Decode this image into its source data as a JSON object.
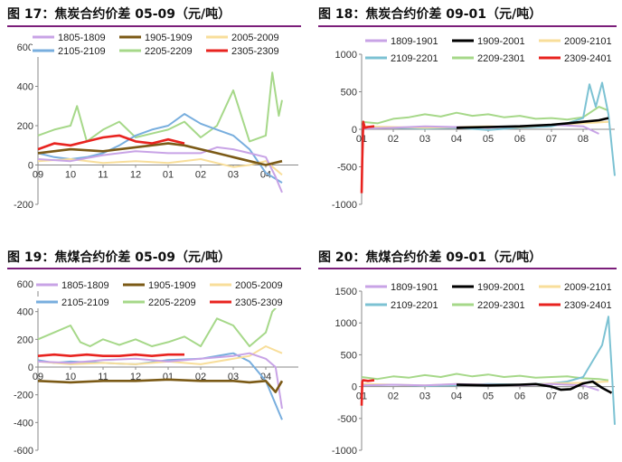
{
  "panels": [
    {
      "title": "图 17：焦炭合约价差 05-09（元/吨）"
    },
    {
      "title": "图 18：焦炭合约价差 09-01（元/吨）"
    },
    {
      "title": "图 19：焦煤合约价差 05-09（元/吨）"
    },
    {
      "title": "图 20：焦煤合约价差 09-01（元/吨）"
    }
  ],
  "colors": {
    "title_rule": "#7b1e7a",
    "series": [
      "#c8a3e6",
      "#7b5a16",
      "#f8de9a",
      "#78aede",
      "#a6d889",
      "#e8231f"
    ],
    "series_0901": [
      "#c8a3e6",
      "#000000",
      "#f8de9a",
      "#7cc2d3",
      "#a6d889",
      "#e8231f"
    ]
  },
  "chart_data": [
    {
      "type": "line",
      "title": "图 17：焦炭合约价差 05-09（元/吨）",
      "xlabel": "",
      "ylabel": "",
      "ylim": [
        -200,
        600
      ],
      "yticks": [
        -200,
        0,
        200,
        400,
        600
      ],
      "x_tick_labels": [
        "09",
        "10",
        "11",
        "12",
        "01",
        "02",
        "03",
        "04"
      ],
      "grid": false,
      "legend_position": "top",
      "series": [
        {
          "name": "1805-1809",
          "color": "#c8a3e6",
          "x": [
            0,
            1,
            2,
            3,
            4,
            5,
            5.5,
            6,
            6.5,
            7,
            7.3,
            7.5
          ],
          "values": [
            30,
            20,
            50,
            70,
            60,
            60,
            90,
            80,
            60,
            40,
            -60,
            -140
          ]
        },
        {
          "name": "1905-1909",
          "color": "#7b5a16",
          "x": [
            0,
            1,
            2,
            3,
            4,
            4.5,
            5,
            5.5,
            6,
            6.5,
            7,
            7.5
          ],
          "values": [
            60,
            80,
            70,
            90,
            110,
            100,
            80,
            60,
            40,
            20,
            0,
            20
          ]
        },
        {
          "name": "2005-2009",
          "color": "#f8de9a",
          "x": [
            0,
            1,
            2,
            3,
            4,
            5,
            6,
            6.5,
            7,
            7.5
          ],
          "values": [
            20,
            30,
            10,
            20,
            10,
            30,
            -10,
            0,
            20,
            -50
          ]
        },
        {
          "name": "2105-2109",
          "color": "#78aede",
          "x": [
            0,
            0.5,
            1,
            1.5,
            2,
            2.5,
            3,
            3.5,
            4,
            4.5,
            5,
            5.5,
            6,
            6.5,
            7,
            7.5
          ],
          "values": [
            60,
            40,
            30,
            40,
            60,
            100,
            150,
            180,
            200,
            260,
            210,
            180,
            150,
            80,
            -40,
            -90
          ]
        },
        {
          "name": "2205-2209",
          "color": "#a6d889",
          "x": [
            0,
            0.5,
            1,
            1.2,
            1.5,
            2,
            2.5,
            3,
            3.5,
            4,
            4.5,
            5,
            5.5,
            6,
            6.5,
            7,
            7.2,
            7.4,
            7.5
          ],
          "values": [
            150,
            180,
            200,
            300,
            120,
            180,
            220,
            140,
            160,
            180,
            220,
            140,
            200,
            380,
            120,
            150,
            470,
            250,
            330
          ]
        },
        {
          "name": "2305-2309",
          "color": "#e8231f",
          "x": [
            0,
            0.5,
            1,
            1.5,
            2,
            2.5,
            3,
            3.5,
            4,
            4.5
          ],
          "values": [
            80,
            110,
            100,
            120,
            140,
            150,
            120,
            110,
            130,
            110
          ]
        }
      ]
    },
    {
      "type": "line",
      "title": "图 18：焦炭合约价差 09-01（元/吨）",
      "xlabel": "",
      "ylabel": "",
      "ylim": [
        -1000,
        1000
      ],
      "yticks": [
        -1000,
        -500,
        0,
        500,
        1000
      ],
      "x_tick_labels": [
        "01",
        "02",
        "03",
        "04",
        "05",
        "06",
        "07",
        "08"
      ],
      "grid": false,
      "legend_position": "top",
      "series": [
        {
          "name": "1809-1901",
          "color": "#c8a3e6",
          "x": [
            0,
            1,
            2,
            3,
            4,
            5,
            6,
            7,
            7.5
          ],
          "values": [
            10,
            20,
            40,
            30,
            20,
            40,
            60,
            40,
            -60
          ]
        },
        {
          "name": "1909-2001",
          "color": "#000000",
          "x": [
            3,
            4,
            5,
            6,
            6.5,
            7,
            7.5,
            7.8
          ],
          "values": [
            20,
            30,
            40,
            60,
            80,
            100,
            120,
            150
          ]
        },
        {
          "name": "2009-2101",
          "color": "#f8de9a",
          "x": [
            0,
            1,
            2,
            3,
            4,
            5,
            6,
            7,
            7.8
          ],
          "values": [
            40,
            30,
            20,
            30,
            40,
            30,
            60,
            80,
            100
          ]
        },
        {
          "name": "2109-2201",
          "color": "#7cc2d3",
          "x": [
            0,
            1,
            2,
            3,
            4,
            5,
            6,
            6.5,
            7,
            7.2,
            7.4,
            7.6,
            7.8,
            8
          ],
          "values": [
            30,
            20,
            10,
            20,
            -10,
            20,
            40,
            80,
            150,
            600,
            300,
            620,
            200,
            -620
          ]
        },
        {
          "name": "2209-2301",
          "color": "#a6d889",
          "x": [
            0,
            0.5,
            1,
            1.5,
            2,
            2.5,
            3,
            3.5,
            4,
            4.5,
            5,
            5.5,
            6,
            6.5,
            7,
            7.5,
            7.8
          ],
          "values": [
            100,
            80,
            140,
            160,
            200,
            170,
            220,
            180,
            200,
            160,
            180,
            140,
            150,
            130,
            160,
            300,
            250
          ]
        },
        {
          "name": "2309-2401",
          "color": "#e8231f",
          "x": [
            0,
            0.02,
            0.05,
            0.1,
            0.2,
            0.4
          ],
          "values": [
            -850,
            -400,
            100,
            20,
            30,
            40
          ]
        }
      ]
    },
    {
      "type": "line",
      "title": "图 19：焦煤合约价差 05-09（元/吨）",
      "xlabel": "",
      "ylabel": "",
      "ylim": [
        -600,
        600
      ],
      "yticks": [
        -600,
        -400,
        -200,
        0,
        200,
        400,
        600
      ],
      "x_tick_labels": [
        "09",
        "10",
        "11",
        "12",
        "01",
        "02",
        "03",
        "04"
      ],
      "grid": false,
      "legend_position": "top",
      "series": [
        {
          "name": "1805-1809",
          "color": "#c8a3e6",
          "x": [
            0,
            1,
            2,
            3,
            4,
            5,
            6,
            6.5,
            7,
            7.3,
            7.5
          ],
          "values": [
            40,
            30,
            50,
            60,
            40,
            60,
            80,
            100,
            60,
            0,
            -300
          ]
        },
        {
          "name": "1905-1909",
          "color": "#7b5a16",
          "x": [
            0,
            1,
            2,
            3,
            4,
            5,
            6,
            6.5,
            7,
            7.3,
            7.5
          ],
          "values": [
            -100,
            -110,
            -100,
            -100,
            -90,
            -100,
            -100,
            -110,
            -100,
            -180,
            -100
          ]
        },
        {
          "name": "2005-2009",
          "color": "#f8de9a",
          "x": [
            0,
            1,
            2,
            3,
            4,
            5,
            6,
            6.5,
            7,
            7.5
          ],
          "values": [
            40,
            20,
            30,
            20,
            40,
            20,
            60,
            80,
            150,
            100
          ]
        },
        {
          "name": "2105-2109",
          "color": "#78aede",
          "x": [
            0,
            0.5,
            1,
            2,
            3,
            4,
            5,
            5.5,
            6,
            6.5,
            7,
            7.5
          ],
          "values": [
            50,
            30,
            40,
            30,
            20,
            50,
            60,
            80,
            100,
            40,
            -100,
            -380
          ]
        },
        {
          "name": "2205-2209",
          "color": "#a6d889",
          "x": [
            0,
            0.5,
            1,
            1.3,
            1.6,
            2,
            2.5,
            3,
            3.5,
            4,
            4.5,
            5,
            5.5,
            6,
            6.5,
            7,
            7.2,
            7.4,
            7.5
          ],
          "values": [
            200,
            250,
            300,
            180,
            150,
            200,
            160,
            200,
            150,
            180,
            220,
            150,
            350,
            300,
            150,
            250,
            400,
            450,
            500
          ]
        },
        {
          "name": "2305-2309",
          "color": "#e8231f",
          "x": [
            0,
            0.5,
            1,
            1.5,
            2,
            2.5,
            3,
            3.5,
            4,
            4.5
          ],
          "values": [
            80,
            90,
            80,
            90,
            80,
            80,
            90,
            80,
            90,
            90
          ]
        }
      ]
    },
    {
      "type": "line",
      "title": "图 20：焦煤合约价差 09-01（元/吨）",
      "xlabel": "",
      "ylabel": "",
      "ylim": [
        -1000,
        1500
      ],
      "yticks": [
        -1000,
        -500,
        0,
        500,
        1000,
        1500
      ],
      "x_tick_labels": [
        "01",
        "02",
        "03",
        "04",
        "05",
        "06",
        "07",
        "08"
      ],
      "grid": false,
      "legend_position": "top",
      "series": [
        {
          "name": "1809-1901",
          "color": "#c8a3e6",
          "x": [
            0,
            1,
            2,
            3,
            4,
            5,
            6,
            7,
            7.5
          ],
          "values": [
            20,
            30,
            20,
            40,
            30,
            20,
            40,
            20,
            -60
          ]
        },
        {
          "name": "1909-2001",
          "color": "#000000",
          "x": [
            3,
            4,
            5,
            5.5,
            6,
            6.3,
            6.6,
            7,
            7.3,
            7.6,
            7.9
          ],
          "values": [
            30,
            20,
            30,
            40,
            0,
            -50,
            -40,
            50,
            80,
            -20,
            -100
          ]
        },
        {
          "name": "2009-2101",
          "color": "#f8de9a",
          "x": [
            0,
            1,
            2,
            3,
            4,
            5,
            6,
            7,
            7.8
          ],
          "values": [
            40,
            30,
            20,
            40,
            30,
            20,
            50,
            60,
            80
          ]
        },
        {
          "name": "2109-2201",
          "color": "#7cc2d3",
          "x": [
            0,
            1,
            2,
            3,
            4,
            5,
            6,
            6.5,
            7,
            7.3,
            7.6,
            7.8,
            7.9,
            8
          ],
          "values": [
            20,
            30,
            10,
            20,
            40,
            30,
            50,
            80,
            150,
            400,
            650,
            1100,
            300,
            -600
          ]
        },
        {
          "name": "2209-2301",
          "color": "#a6d889",
          "x": [
            0,
            0.5,
            1,
            1.5,
            2,
            2.5,
            3,
            3.5,
            4,
            4.5,
            5,
            5.5,
            6,
            6.5,
            7,
            7.5,
            7.8
          ],
          "values": [
            150,
            120,
            160,
            140,
            180,
            150,
            200,
            160,
            190,
            150,
            170,
            140,
            150,
            160,
            130,
            120,
            100
          ]
        },
        {
          "name": "2309-2401",
          "color": "#e8231f",
          "x": [
            0,
            0.02,
            0.05,
            0.2,
            0.4
          ],
          "values": [
            -300,
            80,
            100,
            90,
            100
          ]
        }
      ]
    }
  ]
}
